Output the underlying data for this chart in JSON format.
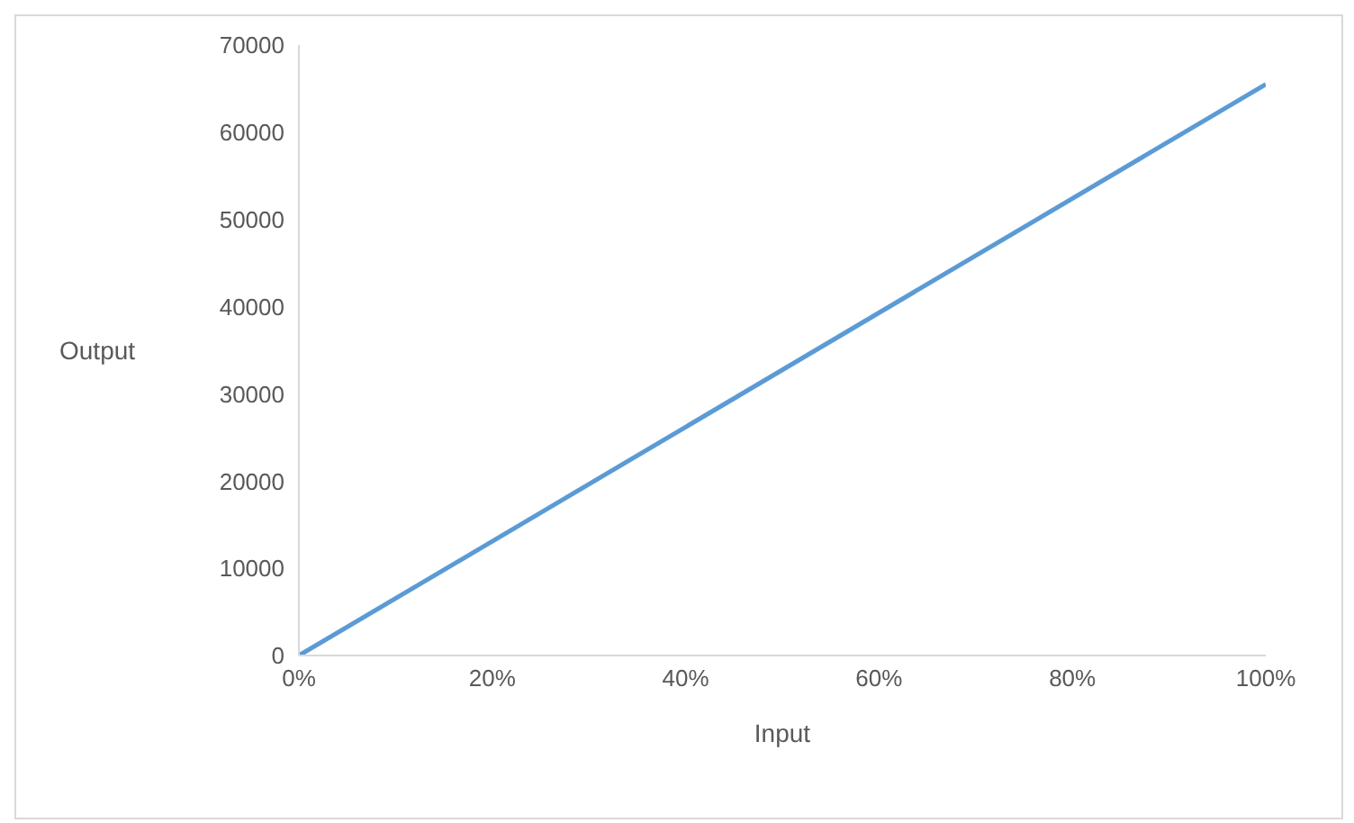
{
  "chart_data": {
    "type": "line",
    "xlabel": "Input",
    "ylabel": "Output",
    "x": [
      0,
      100
    ],
    "series": [
      {
        "color": "#5b9bd5",
        "values": [
          0,
          65500
        ]
      }
    ],
    "xlim": [
      0,
      100
    ],
    "xticks": [
      {
        "value": 0,
        "label": "0%"
      },
      {
        "value": 20,
        "label": "20%"
      },
      {
        "value": 40,
        "label": "40%"
      },
      {
        "value": 60,
        "label": "60%"
      },
      {
        "value": 80,
        "label": "80%"
      },
      {
        "value": 100,
        "label": "100%"
      }
    ],
    "ylim": [
      0,
      70000
    ],
    "yticks": [
      0,
      10000,
      20000,
      30000,
      40000,
      50000,
      60000,
      70000
    ],
    "grid": false,
    "legend": false,
    "marker": "none",
    "line_style": "solid"
  }
}
